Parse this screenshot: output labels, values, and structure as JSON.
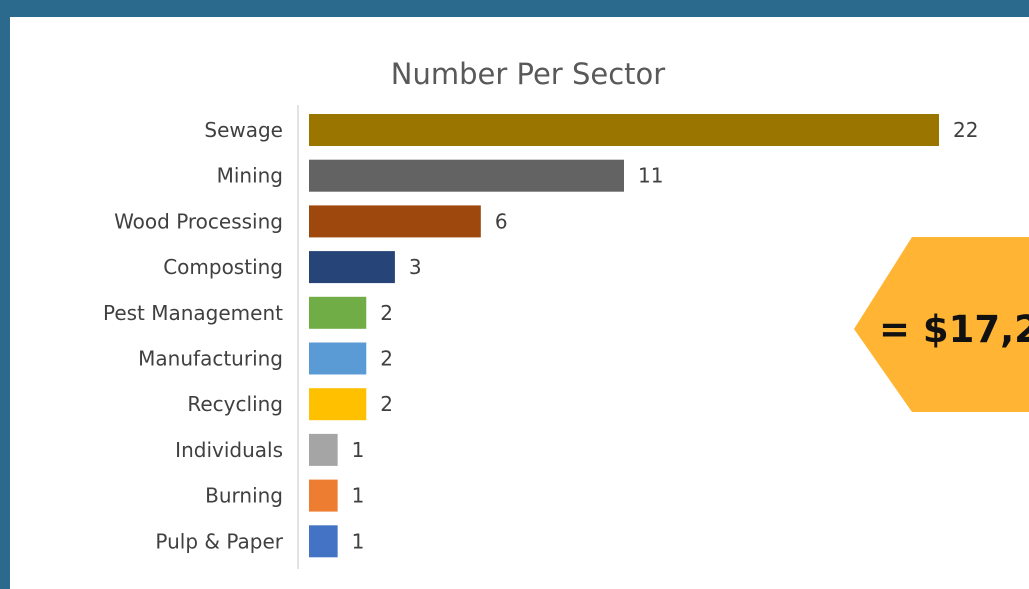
{
  "chart_data": {
    "type": "bar",
    "orientation": "horizontal",
    "title": "Number Per Sector",
    "xlabel": "",
    "ylabel": "",
    "xlim": [
      0,
      22
    ],
    "grid": false,
    "legend": "none",
    "data_labels": true,
    "categories": [
      "Sewage",
      "Mining",
      "Wood Processing",
      "Composting",
      "Pest Management",
      "Manufacturing",
      "Recycling",
      "Individuals",
      "Burning",
      "Pulp & Paper"
    ],
    "values": [
      22,
      11,
      6,
      3,
      2,
      2,
      2,
      1,
      1,
      1
    ],
    "colors": [
      "#9a7500",
      "#636363",
      "#9e480e",
      "#264478",
      "#70ad47",
      "#5b9bd5",
      "#ffc000",
      "#a5a5a5",
      "#ed7d31",
      "#4472c4"
    ]
  },
  "callout": {
    "text": "= $17,2",
    "color": "#ffb533"
  },
  "colors": {
    "background": "#2b6a8c",
    "panel": "#ffffff",
    "axis": "#d9d9d9"
  }
}
